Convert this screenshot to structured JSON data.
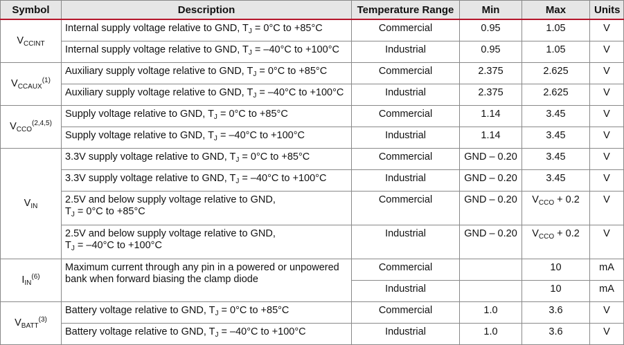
{
  "headers": {
    "symbol": "Symbol",
    "description": "Description",
    "temp_range": "Temperature Range",
    "min": "Min",
    "max": "Max",
    "units": "Units"
  },
  "symbols": {
    "vccint": {
      "base": "V",
      "sub": "CCINT",
      "sup": ""
    },
    "vccaux": {
      "base": "V",
      "sub": "CCAUX",
      "sup": "(1)"
    },
    "vcco": {
      "base": "V",
      "sub": "CCO",
      "sup": "(2,4,5)"
    },
    "vin": {
      "base": "V",
      "sub": "IN",
      "sup": ""
    },
    "iin": {
      "base": "I",
      "sub": "IN",
      "sup": "(6)"
    },
    "vbatt": {
      "base": "V",
      "sub": "BATT",
      "sup": "(3)"
    }
  },
  "tj": {
    "base": "T",
    "sub": "J"
  },
  "vcco_inline": {
    "base": "V",
    "sub": "CCO",
    "rest": " + 0.2"
  },
  "rows": [
    {
      "desc_pre": "Internal supply voltage relative to GND, ",
      "desc_post": " = 0°C to +85°C",
      "range": "Commercial",
      "min": "0.95",
      "max": "1.05",
      "units": "V"
    },
    {
      "desc_pre": "Internal supply voltage relative to GND, ",
      "desc_post": " = –40°C to +100°C",
      "range": "Industrial",
      "min": "0.95",
      "max": "1.05",
      "units": "V"
    },
    {
      "desc_pre": "Auxiliary supply voltage relative to GND, ",
      "desc_post": " = 0°C to +85°C",
      "range": "Commercial",
      "min": "2.375",
      "max": "2.625",
      "units": "V"
    },
    {
      "desc_pre": "Auxiliary supply voltage relative to GND, ",
      "desc_post": " = –40°C to +100°C",
      "range": "Industrial",
      "min": "2.375",
      "max": "2.625",
      "units": "V"
    },
    {
      "desc_pre": "Supply voltage relative to GND, ",
      "desc_post": " = 0°C to +85°C",
      "range": "Commercial",
      "min": "1.14",
      "max": "3.45",
      "units": "V"
    },
    {
      "desc_pre": "Supply voltage relative to GND, ",
      "desc_post": " = –40°C to +100°C",
      "range": "Industrial",
      "min": "1.14",
      "max": "3.45",
      "units": "V"
    },
    {
      "desc_pre": "3.3V supply voltage relative to GND, ",
      "desc_post": " = 0°C to +85°C",
      "range": "Commercial",
      "min": "GND – 0.20",
      "max": "3.45",
      "units": "V"
    },
    {
      "desc_pre": "3.3V supply voltage relative to GND, ",
      "desc_post": " = –40°C to +100°C",
      "range": "Industrial",
      "min": "GND – 0.20",
      "max": "3.45",
      "units": "V"
    },
    {
      "desc_line1": "2.5V and below supply voltage relative to GND,",
      "desc_post": " = 0°C to +85°C",
      "range": "Commercial",
      "min": "GND – 0.20",
      "units": "V"
    },
    {
      "desc_line1": "2.5V and below supply voltage relative to GND,",
      "desc_post": " = –40°C to +100°C",
      "range": "Industrial",
      "min": "GND – 0.20",
      "units": "V"
    },
    {
      "desc_line1": "Maximum current through any pin in a powered or unpowered",
      "desc_line2": "bank when forward biasing the clamp diode",
      "range": "Commercial",
      "min": "",
      "max": "10",
      "units": "mA"
    },
    {
      "range": "Industrial",
      "min": "",
      "max": "10",
      "units": "mA"
    },
    {
      "desc_pre": "Battery voltage relative to GND, ",
      "desc_post": " = 0°C to +85°C",
      "range": "Commercial",
      "min": "1.0",
      "max": "3.6",
      "units": "V"
    },
    {
      "desc_pre": "Battery voltage relative to GND, ",
      "desc_post": " = –40°C to +100°C",
      "range": "Industrial",
      "min": "1.0",
      "max": "3.6",
      "units": "V"
    }
  ]
}
